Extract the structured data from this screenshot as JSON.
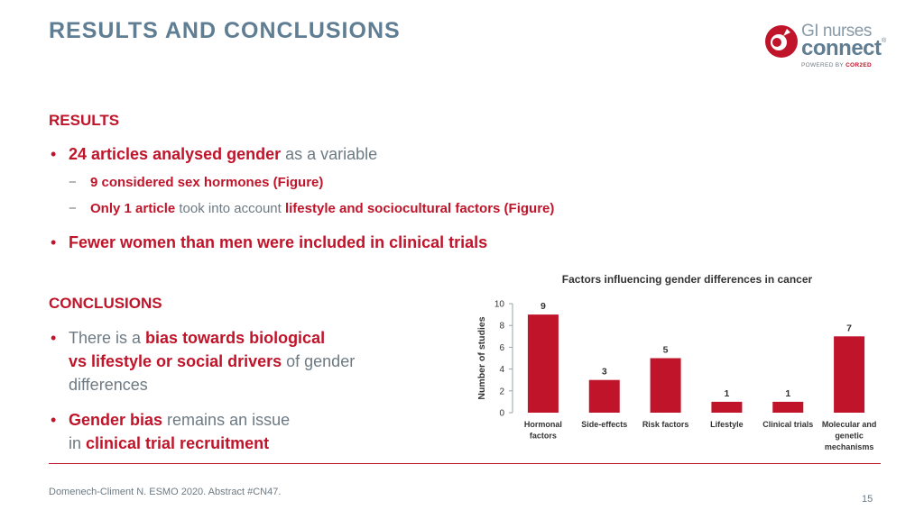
{
  "slide": {
    "title": "RESULTS AND CONCLUSIONS",
    "logo": {
      "line1": "GI nurses",
      "line2": "connect",
      "reg": "®",
      "powered_prefix": "POWERED BY ",
      "powered_brand": "COR2ED"
    },
    "results": {
      "heading": "RESULTS",
      "bullet1": {
        "bold": "24 articles analysed gender",
        "rest": " as a variable"
      },
      "sub1": {
        "dash": "−",
        "bold": "9 considered sex hormones (Figure)"
      },
      "sub2": {
        "dash": "−",
        "bold1": "Only 1 article",
        "mid": " took into account ",
        "bold2": "lifestyle and sociocultural factors (Figure)"
      },
      "bullet2": {
        "bold": "Fewer women than men were included in clinical trials"
      }
    },
    "conclusions": {
      "heading": "CONCLUSIONS",
      "bullet1": {
        "pre": "There is a ",
        "bold1": "bias towards biological",
        "bold2": "vs lifestyle or social drivers",
        "mid": " of gender",
        "post": "differences"
      },
      "bullet2": {
        "bold1": "Gender bias",
        "mid": " remains an issue",
        "pre2": "in ",
        "bold2": "clinical trial recruitment"
      }
    },
    "footer": "Domenech-Climent N. ESMO 2020. Abstract #CN47.",
    "page_number": "15",
    "bullet_char": "•",
    "colors": {
      "accent": "#c0142a",
      "title": "#5f7d93",
      "text": "#6d7a83"
    }
  },
  "chart_data": {
    "type": "bar",
    "title": "Factors influencing gender differences in cancer",
    "ylabel": "Number of studies",
    "xlabel": "",
    "categories": [
      [
        "Hormonal",
        "factors"
      ],
      [
        "Side-effects"
      ],
      [
        "Risk factors"
      ],
      [
        "Lifestyle"
      ],
      [
        "Clinical trials"
      ],
      [
        "Molecular and",
        "genetic",
        "mechanisms"
      ]
    ],
    "values": [
      9,
      3,
      5,
      1,
      1,
      7
    ],
    "ylim": [
      0,
      10
    ],
    "yticks": [
      0,
      2,
      4,
      6,
      8,
      10
    ],
    "data_labels": true,
    "grid": false,
    "bar_color": "#c0142a"
  }
}
